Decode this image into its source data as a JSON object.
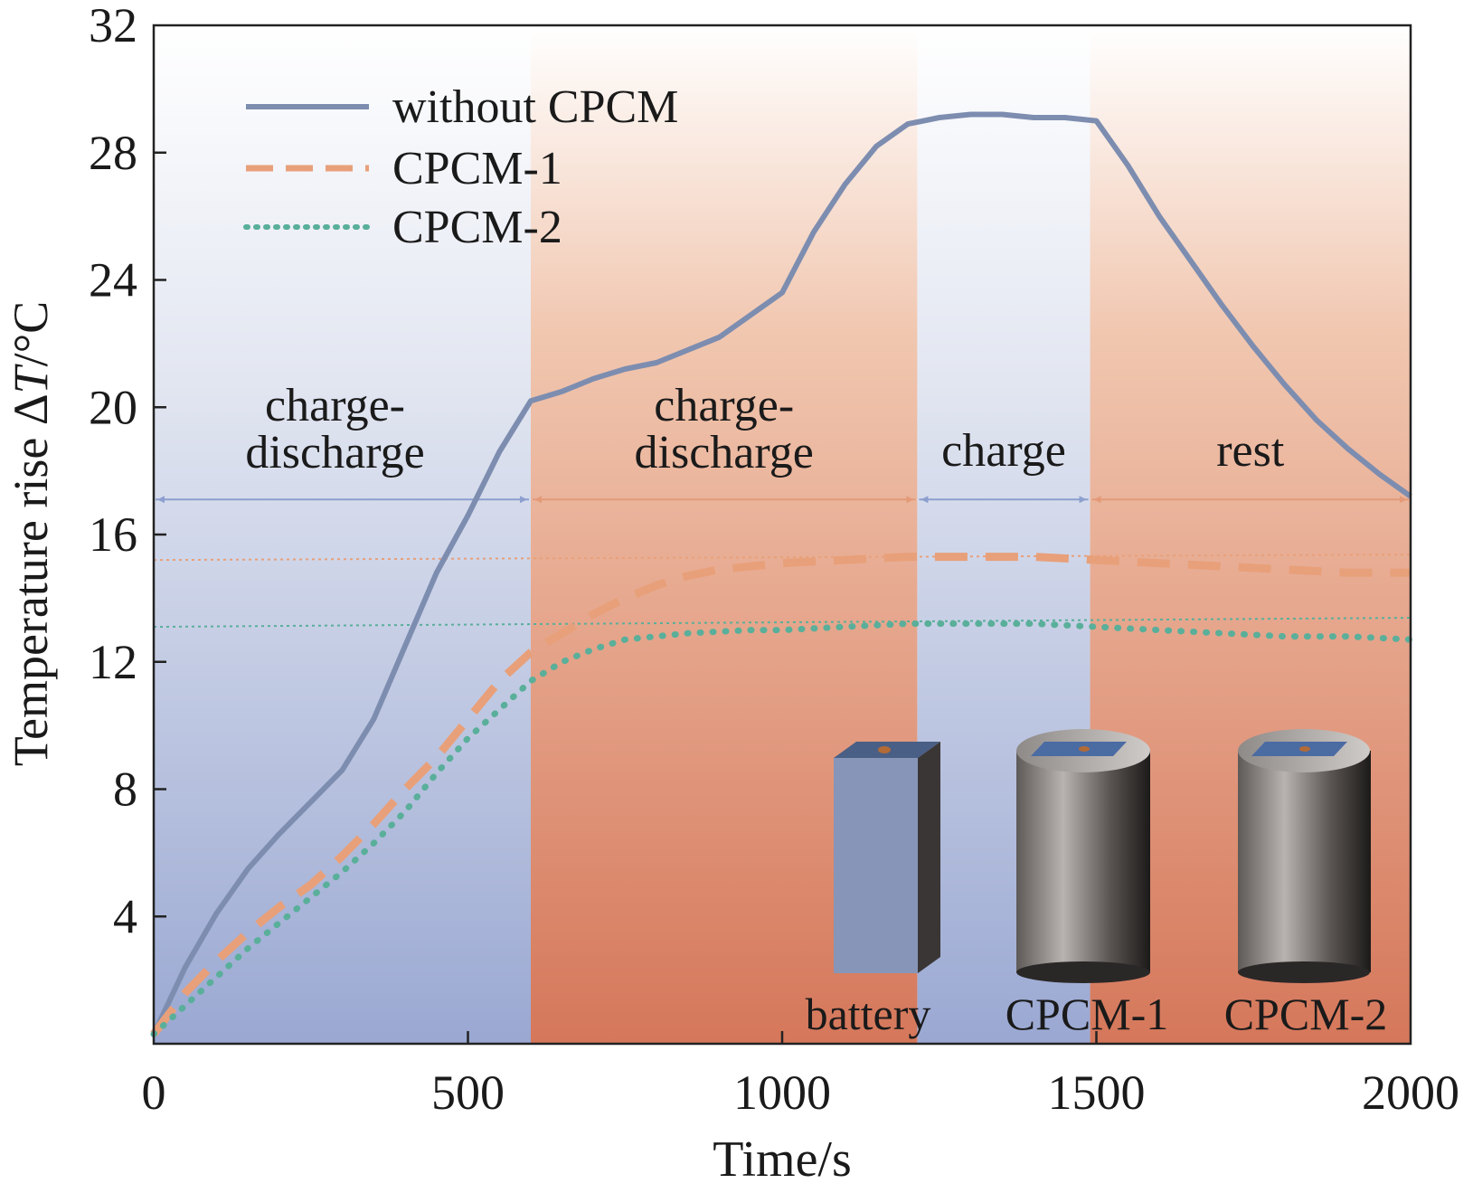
{
  "chart_data": {
    "type": "line",
    "xlabel": "Time/s",
    "ylabel_prefix": "Temperature rise Δ",
    "ylabel_italic": "T",
    "ylabel_suffix": "/°C",
    "xlim": [
      0,
      2000
    ],
    "ylim": [
      0,
      32
    ],
    "xticks": [
      0,
      500,
      1000,
      1500,
      2000
    ],
    "yticks": [
      4,
      8,
      12,
      16,
      20,
      24,
      28,
      32
    ],
    "x_tick_labels": [
      "0",
      "500",
      "1000",
      "1500",
      "2000"
    ],
    "y_tick_labels": [
      "4",
      "8",
      "12",
      "16",
      "20",
      "24",
      "28",
      "32"
    ],
    "legend_position": "top-left",
    "grid": false,
    "phases": [
      {
        "label_lines": [
          "charge-",
          "discharge"
        ],
        "start": 0,
        "end": 600,
        "color": "#8c9fcf"
      },
      {
        "label_lines": [
          "charge-",
          "discharge"
        ],
        "start": 600,
        "end": 1215,
        "color": "#d97b55"
      },
      {
        "label_lines": [
          "charge"
        ],
        "start": 1215,
        "end": 1490,
        "color": "#8c9fcf"
      },
      {
        "label_lines": [
          "rest"
        ],
        "start": 1490,
        "end": 2000,
        "color": "#d97b55"
      }
    ],
    "series": [
      {
        "name": "without CPCM",
        "style": "solid",
        "color": "#7d8db0",
        "x": [
          0,
          50,
          100,
          150,
          200,
          250,
          300,
          350,
          400,
          450,
          500,
          550,
          600,
          650,
          700,
          750,
          800,
          850,
          900,
          950,
          1000,
          1050,
          1100,
          1150,
          1200,
          1250,
          1300,
          1350,
          1400,
          1450,
          1500,
          1550,
          1600,
          1650,
          1700,
          1750,
          1800,
          1850,
          1900,
          1950,
          2000
        ],
        "y": [
          0.3,
          2.4,
          4.1,
          5.5,
          6.6,
          7.6,
          8.6,
          10.2,
          12.5,
          14.8,
          16.6,
          18.6,
          20.2,
          20.5,
          20.9,
          21.2,
          21.4,
          21.8,
          22.2,
          22.9,
          23.6,
          25.5,
          27.0,
          28.2,
          28.9,
          29.1,
          29.2,
          29.2,
          29.1,
          29.1,
          29.0,
          27.6,
          26.0,
          24.6,
          23.2,
          21.9,
          20.7,
          19.6,
          18.7,
          17.9,
          17.2
        ]
      },
      {
        "name": "CPCM-1",
        "style": "dashed",
        "color": "#e8a07a",
        "x": [
          0,
          50,
          100,
          150,
          200,
          250,
          300,
          350,
          400,
          450,
          500,
          550,
          600,
          650,
          700,
          750,
          800,
          850,
          900,
          950,
          1000,
          1100,
          1200,
          1300,
          1400,
          1500,
          1600,
          1700,
          1800,
          1900,
          2000
        ],
        "y": [
          0.3,
          1.6,
          2.6,
          3.5,
          4.3,
          5.0,
          5.9,
          6.9,
          8.0,
          9.0,
          10.2,
          11.4,
          12.3,
          12.9,
          13.5,
          14.0,
          14.4,
          14.7,
          14.9,
          15.0,
          15.1,
          15.2,
          15.3,
          15.3,
          15.3,
          15.2,
          15.1,
          15.0,
          14.9,
          14.8,
          14.8
        ]
      },
      {
        "name": "CPCM-2",
        "style": "dotted",
        "color": "#5aaf9a",
        "x": [
          0,
          50,
          100,
          150,
          200,
          250,
          300,
          350,
          400,
          450,
          500,
          550,
          600,
          650,
          700,
          750,
          800,
          850,
          900,
          950,
          1000,
          1100,
          1200,
          1300,
          1400,
          1500,
          1600,
          1700,
          1800,
          1900,
          2000
        ],
        "y": [
          0.3,
          1.2,
          2.1,
          3.0,
          3.8,
          4.6,
          5.4,
          6.3,
          7.3,
          8.5,
          9.6,
          10.5,
          11.4,
          12.0,
          12.4,
          12.7,
          12.8,
          12.9,
          12.95,
          13.0,
          13.0,
          13.1,
          13.2,
          13.2,
          13.2,
          13.1,
          13.0,
          12.9,
          12.8,
          12.8,
          12.7
        ]
      }
    ],
    "reference_lines": [
      {
        "y": 15.2,
        "color": "#e8a07a"
      },
      {
        "y": 13.1,
        "color": "#5aaf9a"
      }
    ],
    "inset": {
      "labels": [
        "battery",
        "CPCM-1",
        "CPCM-2"
      ]
    }
  }
}
